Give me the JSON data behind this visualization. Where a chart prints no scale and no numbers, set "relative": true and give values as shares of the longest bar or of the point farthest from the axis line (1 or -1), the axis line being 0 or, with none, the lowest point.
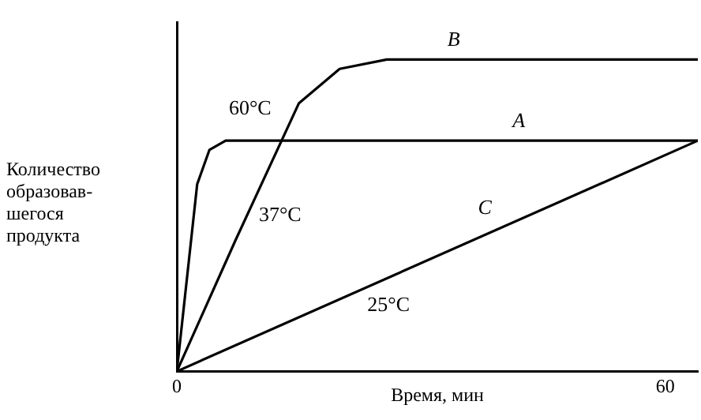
{
  "chart_data": {
    "type": "line",
    "relative": true,
    "xlabel": "Время, мин",
    "ylabel": "Количество\nобразовав-\nшегося\nпродукта",
    "xlim": [
      0,
      64
    ],
    "xticks": [
      0,
      60
    ],
    "grid": false,
    "legend": false,
    "marker": "none",
    "line_style": "solid",
    "series": [
      {
        "name": "A",
        "color": "#000000",
        "x": [
          0,
          2.5,
          4,
          6,
          64
        ],
        "values": [
          0,
          0.6,
          0.71,
          0.74,
          0.74
        ]
      },
      {
        "name": "B",
        "color": "#000000",
        "x": [
          0,
          7.2,
          15,
          20,
          25.8,
          64
        ],
        "values": [
          0,
          0.42,
          0.86,
          0.97,
          1,
          1
        ]
      },
      {
        "name": "C",
        "color": "#000000",
        "x": [
          0,
          64
        ],
        "values": [
          0,
          0.74
        ]
      }
    ],
    "annotations": [
      "60°C",
      "37°C",
      "25°C"
    ]
  }
}
